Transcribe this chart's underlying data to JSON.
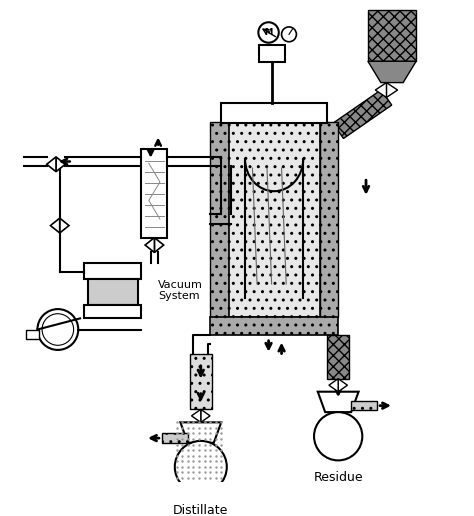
{
  "background_color": "#ffffff",
  "line_color": "#000000",
  "label_distillate": "Distillate",
  "label_residue": "Residue",
  "label_vacuum": "Vacuum\nSystem",
  "figsize": [
    4.74,
    5.16
  ],
  "dpi": 100
}
